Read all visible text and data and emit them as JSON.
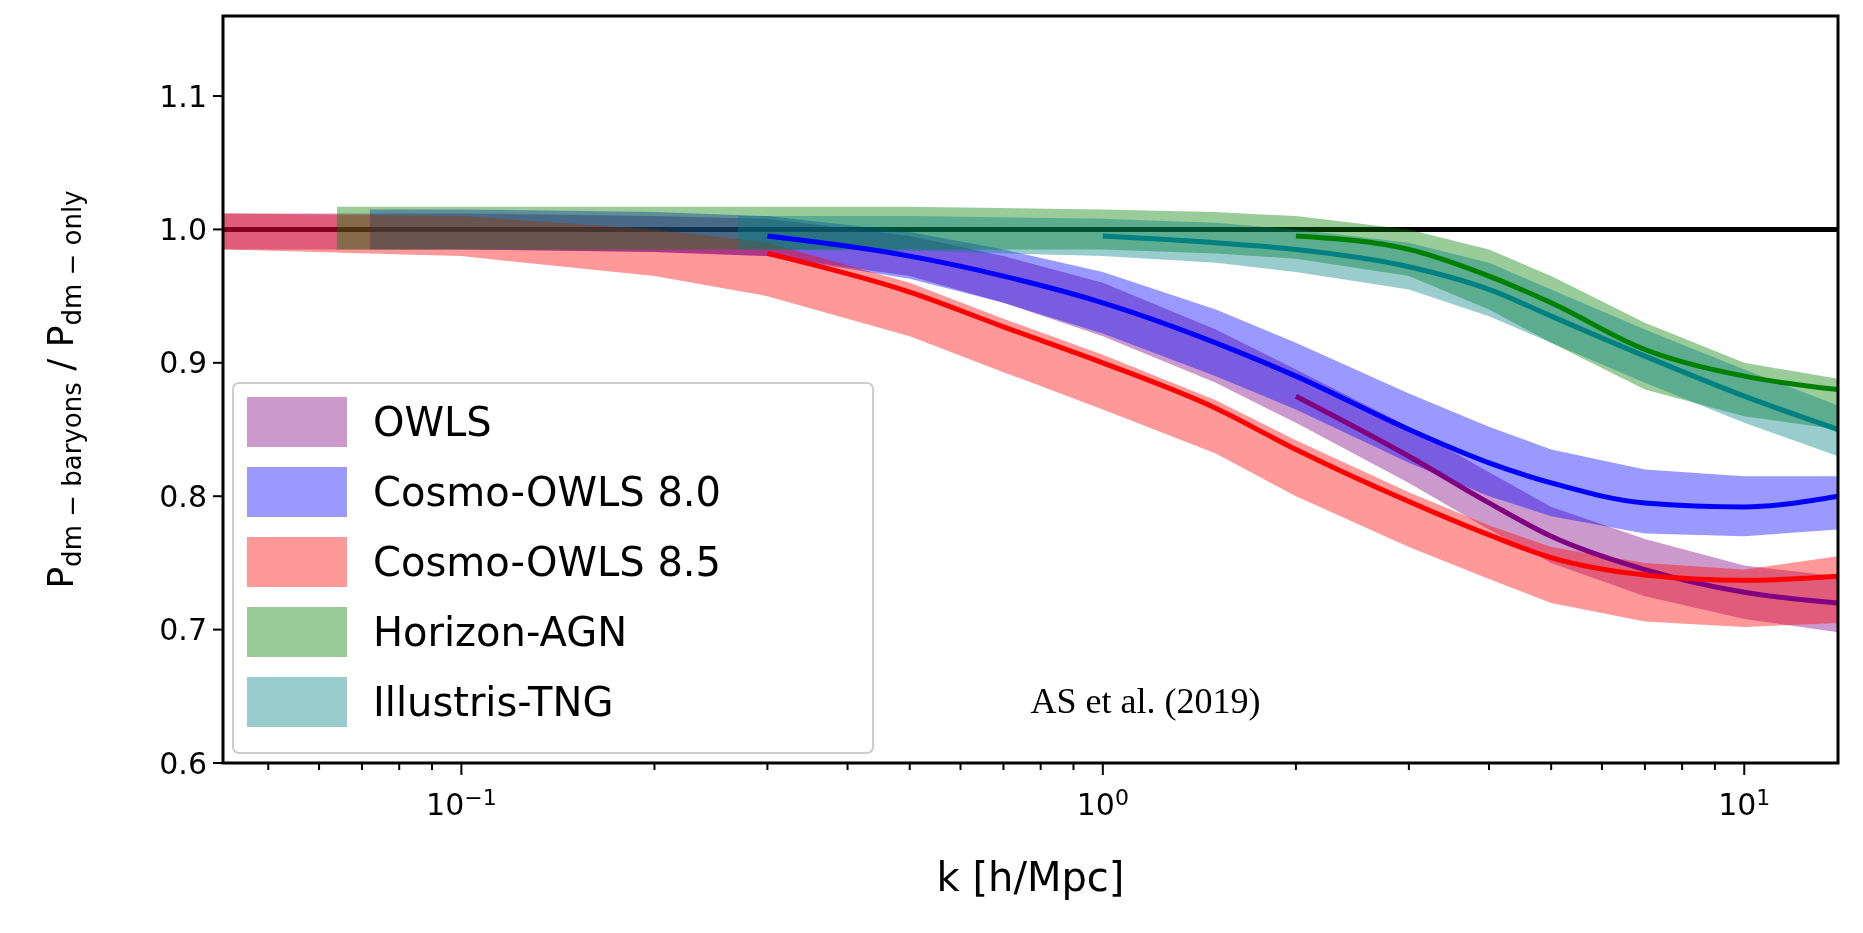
{
  "chart_data": {
    "type": "line",
    "xlabel": "k [h/Mpc]",
    "ylabel": "P$_{dm − baryons}$ / P$_{dm − only}$",
    "log": "x",
    "xlim": [
      0.0425,
      14
    ],
    "ylim": [
      0.6,
      1.16
    ],
    "xticks": [
      {
        "value": 0.05,
        "label": null
      },
      {
        "value": 0.06,
        "label": null
      },
      {
        "value": 0.07,
        "label": null
      },
      {
        "value": 0.08,
        "label": null
      },
      {
        "value": 0.09,
        "label": null
      },
      {
        "value": 0.1,
        "label": "10$^{−1}$"
      },
      {
        "value": 0.2,
        "label": null
      },
      {
        "value": 0.3,
        "label": null
      },
      {
        "value": 0.4,
        "label": null
      },
      {
        "value": 0.5,
        "label": null
      },
      {
        "value": 0.6,
        "label": null
      },
      {
        "value": 0.7,
        "label": null
      },
      {
        "value": 0.8,
        "label": null
      },
      {
        "value": 0.9,
        "label": null
      },
      {
        "value": 1,
        "label": "10$^{0}$"
      },
      {
        "value": 2,
        "label": null
      },
      {
        "value": 3,
        "label": null
      },
      {
        "value": 4,
        "label": null
      },
      {
        "value": 5,
        "label": null
      },
      {
        "value": 6,
        "label": null
      },
      {
        "value": 7,
        "label": null
      },
      {
        "value": 8,
        "label": null
      },
      {
        "value": 9,
        "label": null
      },
      {
        "value": 10,
        "label": "10$^{1}$"
      }
    ],
    "yticks": [
      {
        "value": 0.6,
        "label": "0.6"
      },
      {
        "value": 0.7,
        "label": "0.7"
      },
      {
        "value": 0.8,
        "label": "0.8"
      },
      {
        "value": 0.9,
        "label": "0.9"
      },
      {
        "value": 1.0,
        "label": "1.0"
      },
      {
        "value": 1.1,
        "label": "1.1"
      }
    ],
    "legend": "bottom left",
    "marker": "none",
    "line_style": "solid",
    "ref_lines": [
      {
        "axis": "y",
        "value": 1.0,
        "label": null,
        "color": "#000000"
      }
    ],
    "annotations": [
      "AS et al. (2019)"
    ],
    "series": [
      {
        "name": "OWLS",
        "color": "#800080",
        "x": [
          0.0425,
          0.1,
          0.2,
          0.3,
          0.5,
          0.7,
          1,
          1.5,
          2,
          3,
          4,
          5,
          7,
          10,
          14
        ],
        "values": [
          null,
          null,
          null,
          null,
          null,
          null,
          null,
          null,
          0.875,
          0.83,
          0.795,
          0.77,
          0.745,
          0.728,
          0.72
        ],
        "lower": [
          0.985,
          0.985,
          0.983,
          0.98,
          0.965,
          0.945,
          0.92,
          0.885,
          0.855,
          0.81,
          0.775,
          0.75,
          0.725,
          0.708,
          0.698
        ],
        "upper": [
          1.012,
          1.012,
          1.01,
          1.008,
          0.995,
          0.98,
          0.96,
          0.925,
          0.895,
          0.852,
          0.818,
          0.792,
          0.768,
          0.748,
          0.74
        ]
      },
      {
        "name": "Cosmo-OWLS 8.0",
        "color": "#0000ff",
        "x": [
          0.072,
          0.1,
          0.2,
          0.3,
          0.5,
          0.7,
          1,
          1.5,
          2,
          3,
          4,
          5,
          7,
          10,
          14
        ],
        "values": [
          null,
          null,
          null,
          0.995,
          0.98,
          0.965,
          0.945,
          0.915,
          0.89,
          0.85,
          0.825,
          0.81,
          0.795,
          0.792,
          0.8
        ],
        "lower": [
          0.985,
          0.985,
          0.983,
          0.98,
          0.963,
          0.945,
          0.922,
          0.89,
          0.865,
          0.825,
          0.8,
          0.785,
          0.772,
          0.77,
          0.775
        ],
        "upper": [
          1.015,
          1.015,
          1.013,
          1.01,
          0.998,
          0.985,
          0.968,
          0.94,
          0.915,
          0.877,
          0.852,
          0.835,
          0.82,
          0.815,
          0.815
        ]
      },
      {
        "name": "Cosmo-OWLS 8.5",
        "color": "#ff0000",
        "x": [
          0.0425,
          0.1,
          0.2,
          0.3,
          0.5,
          0.7,
          1,
          1.5,
          2,
          3,
          4,
          5,
          7,
          10,
          14
        ],
        "values": [
          null,
          null,
          null,
          0.982,
          0.953,
          0.927,
          0.9,
          0.866,
          0.835,
          0.796,
          0.771,
          0.754,
          0.741,
          0.737,
          0.74
        ],
        "lower": [
          0.985,
          0.98,
          0.965,
          0.95,
          0.92,
          0.893,
          0.865,
          0.832,
          0.8,
          0.762,
          0.738,
          0.72,
          0.706,
          0.702,
          0.705
        ],
        "upper": [
          1.012,
          1.01,
          1.0,
          0.99,
          0.96,
          0.933,
          0.906,
          0.872,
          0.842,
          0.803,
          0.778,
          0.762,
          0.75,
          0.745,
          0.755
        ]
      },
      {
        "name": "Horizon-AGN",
        "color": "#008000",
        "x": [
          0.064,
          0.1,
          0.2,
          0.3,
          0.5,
          1,
          1.5,
          2,
          3,
          4,
          5,
          7,
          10,
          14
        ],
        "values": [
          null,
          null,
          null,
          null,
          null,
          null,
          null,
          0.995,
          0.985,
          0.965,
          0.945,
          0.91,
          0.89,
          0.88
        ],
        "lower": [
          0.985,
          0.985,
          0.985,
          0.985,
          0.985,
          0.985,
          0.982,
          0.978,
          0.965,
          0.94,
          0.915,
          0.88,
          0.86,
          0.85
        ],
        "upper": [
          1.017,
          1.017,
          1.017,
          1.017,
          1.017,
          1.015,
          1.013,
          1.01,
          1.0,
          0.985,
          0.965,
          0.93,
          0.9,
          0.888
        ]
      },
      {
        "name": "Illustris-TNG",
        "color": "#008080",
        "x": [
          0.27,
          0.5,
          1,
          1.5,
          2,
          3,
          4,
          5,
          7,
          10,
          14
        ],
        "values": [
          null,
          null,
          0.995,
          0.99,
          0.985,
          0.972,
          0.955,
          0.935,
          0.905,
          0.875,
          0.85
        ],
        "lower": [
          0.985,
          0.984,
          0.98,
          0.975,
          0.968,
          0.955,
          0.935,
          0.915,
          0.885,
          0.855,
          0.83
        ],
        "upper": [
          1.01,
          1.01,
          1.008,
          1.005,
          1.0,
          0.99,
          0.975,
          0.955,
          0.925,
          0.895,
          0.868
        ]
      }
    ]
  }
}
